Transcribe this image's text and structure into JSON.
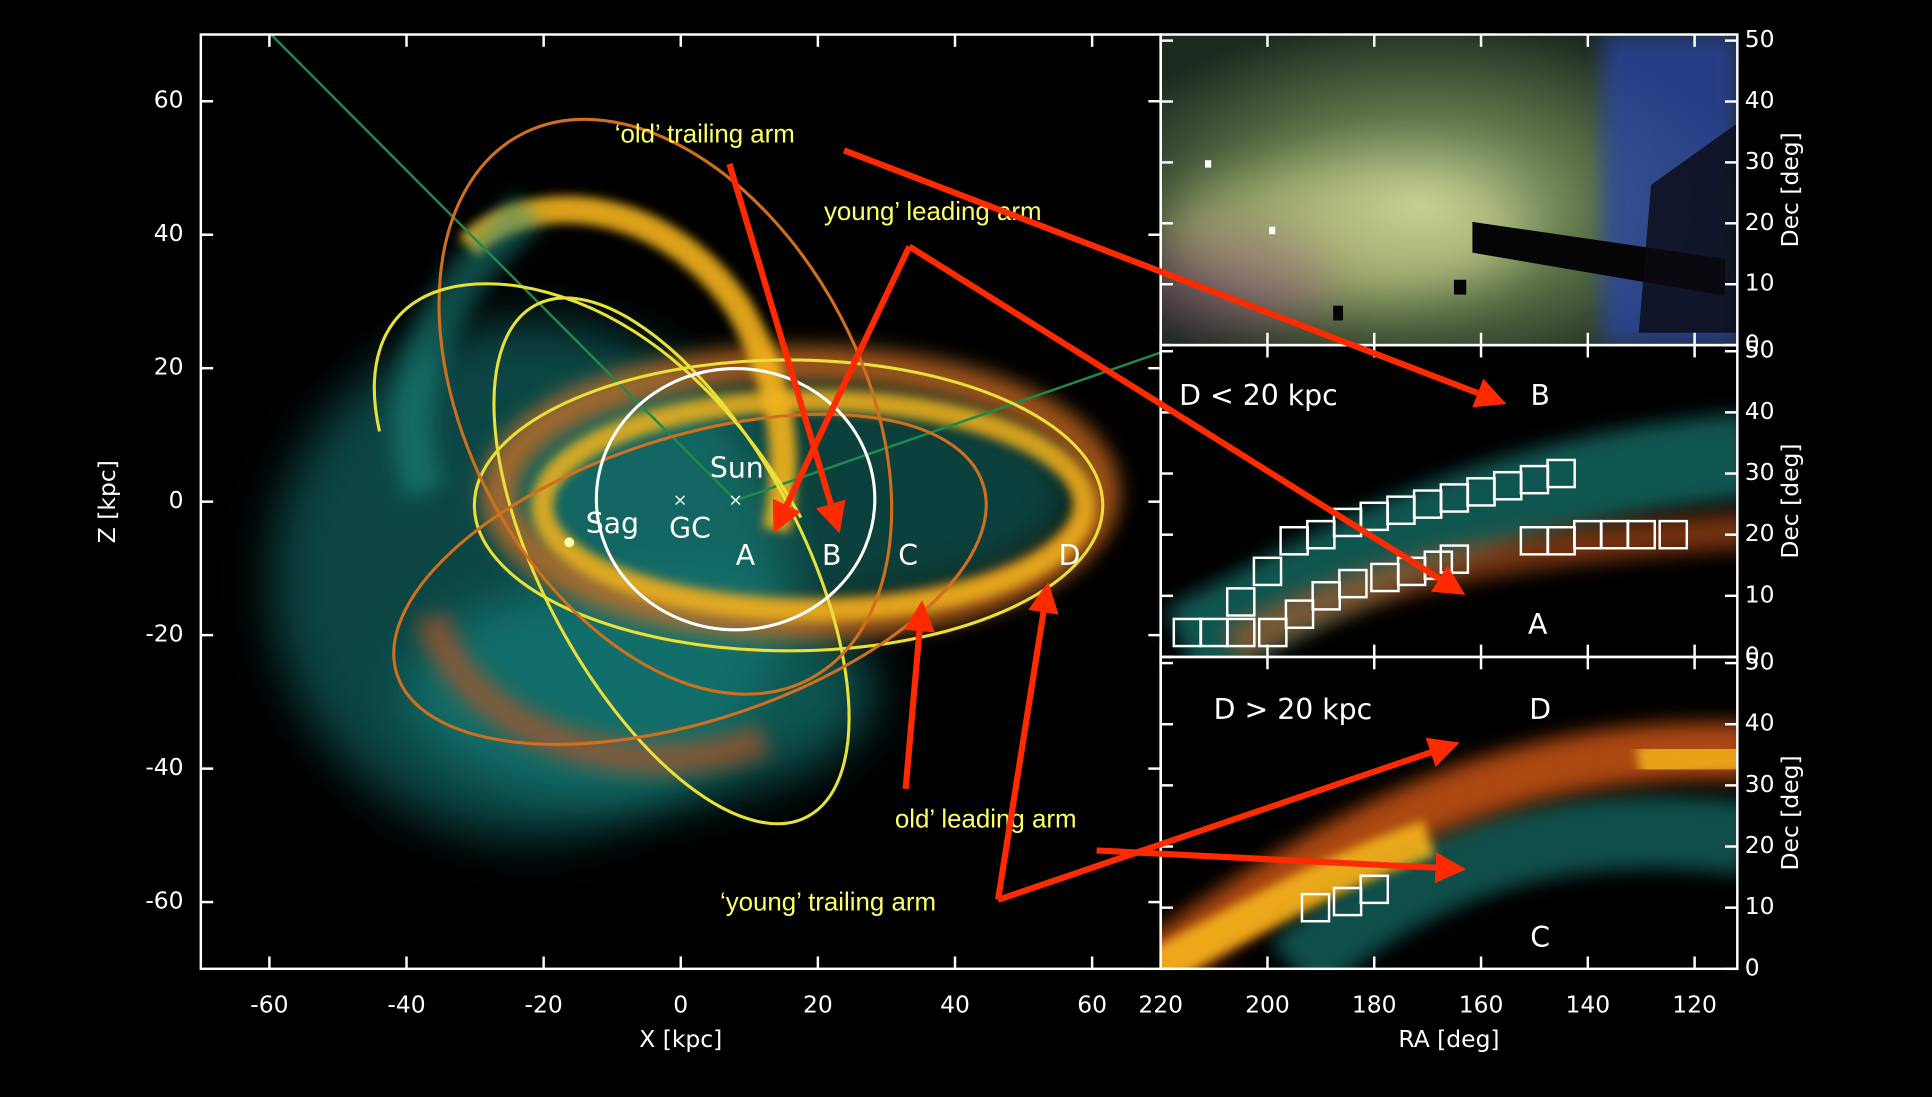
{
  "chart_data": [
    {
      "type": "image",
      "xlabel": "X [kpc]",
      "ylabel": "Z [kpc]",
      "xlim": [
        -70,
        70
      ],
      "ylim": [
        -70,
        70
      ],
      "xticks": [
        -60,
        -40,
        -20,
        0,
        20,
        40,
        60
      ],
      "yticks": [
        -60,
        -40,
        -20,
        0,
        20,
        40,
        60
      ],
      "labels": [
        "Sun",
        "Sag",
        "GC",
        "A",
        "B",
        "C",
        "D"
      ],
      "annotations": [
        "‘old’ trailing arm",
        "young’ leading arm",
        "old’ leading arm",
        "‘young’ trailing arm"
      ]
    },
    {
      "type": "image",
      "ylabel": "Dec [deg]",
      "xlim": [
        220,
        112
      ],
      "ylim": [
        0,
        51
      ],
      "yticks": [
        0,
        10,
        20,
        30,
        40,
        50
      ]
    },
    {
      "type": "scatter",
      "ylabel": "Dec [deg]",
      "xlim": [
        220,
        112
      ],
      "ylim": [
        0,
        51
      ],
      "yticks": [
        0,
        10,
        20,
        30,
        40,
        50
      ],
      "labels": [
        "D < 20 kpc",
        "B",
        "A"
      ],
      "series": [
        {
          "color": "#ffffff",
          "x": [
            215,
            210,
            205,
            205,
            200,
            195,
            190,
            185,
            180,
            175,
            170,
            165,
            160,
            155,
            150,
            145
          ],
          "values": [
            4,
            4,
            4,
            9,
            14,
            19,
            20,
            22,
            23,
            24,
            25,
            26,
            27,
            28,
            29,
            30
          ]
        },
        {
          "color": "#ffffff",
          "x": [
            199,
            194,
            189,
            184,
            178,
            173,
            168,
            165,
            150,
            145,
            140,
            135,
            130,
            124
          ],
          "values": [
            4,
            7,
            10,
            12,
            13,
            14,
            15,
            16,
            19,
            19,
            20,
            20,
            20,
            20
          ]
        }
      ]
    },
    {
      "type": "scatter",
      "xlabel": "RA [deg]",
      "ylabel": "Dec [deg]",
      "xlim": [
        220,
        112
      ],
      "ylim": [
        0,
        51
      ],
      "xticks": [
        220,
        200,
        180,
        160,
        140,
        120
      ],
      "yticks": [
        0,
        10,
        20,
        30,
        40,
        50
      ],
      "labels": [
        "D > 20 kpc",
        "D",
        "C"
      ],
      "series": [
        {
          "color": "#ffffff",
          "x": [
            191,
            185,
            180
          ],
          "values": [
            10,
            11,
            13
          ]
        }
      ]
    }
  ]
}
